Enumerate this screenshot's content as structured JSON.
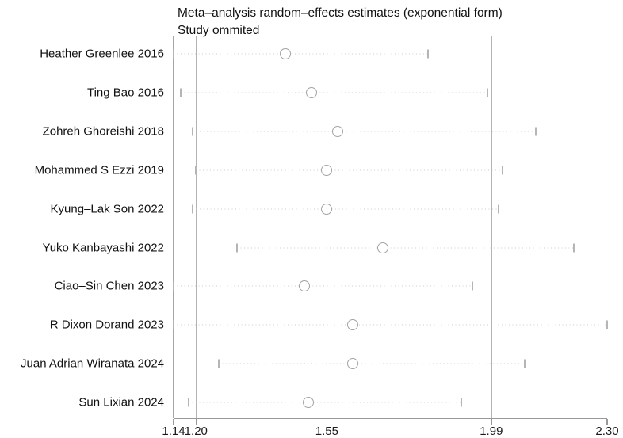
{
  "title_line1": "Meta–analysis random–effects estimates (exponential form)",
  "title_line2": "Study ommited",
  "colors": {
    "background": "#ffffff",
    "text": "#111111",
    "axis_line": "#999999",
    "reference_line": "#b3b3b3",
    "ci_dots": "#cccccc",
    "ci_tick": "#b5b5b5",
    "circle_stroke": "#a3a3a3",
    "circle_fill": "#ffffff"
  },
  "chart_data": {
    "type": "scatter",
    "subtype": "forest-leave-one-out",
    "title": "Meta–analysis random–effects estimates (exponential form)",
    "subtitle": "Study ommited",
    "xlabel": "",
    "ylabel": "",
    "x_axis": {
      "scale": "linear",
      "min": 1.14,
      "max": 2.3,
      "ticks": [
        1.14,
        1.2,
        1.55,
        1.99,
        2.3
      ],
      "tick_labels": [
        "1.14",
        "1.20",
        "1.55",
        "1.99",
        "2.30"
      ]
    },
    "reference_lines": {
      "overall_ci_lower": 1.2,
      "overall_estimate": 1.55,
      "overall_ci_upper": 1.99
    },
    "grid": false,
    "legend": "none",
    "studies": [
      {
        "label": "Heather Greenlee 2016",
        "estimate": 1.44,
        "ci_lower": 1.14,
        "ci_upper": 1.82
      },
      {
        "label": "Ting Bao 2016",
        "estimate": 1.51,
        "ci_lower": 1.16,
        "ci_upper": 1.98
      },
      {
        "label": "Zohreh Ghoreishi 2018",
        "estimate": 1.58,
        "ci_lower": 1.19,
        "ci_upper": 2.11
      },
      {
        "label": "Mohammed S Ezzi 2019",
        "estimate": 1.55,
        "ci_lower": 1.2,
        "ci_upper": 2.02
      },
      {
        "label": "Kyung–Lak Son 2022",
        "estimate": 1.55,
        "ci_lower": 1.19,
        "ci_upper": 2.01
      },
      {
        "label": "Yuko Kanbayashi 2022",
        "estimate": 1.7,
        "ci_lower": 1.31,
        "ci_upper": 2.21
      },
      {
        "label": "Ciao–Sin Chen 2023",
        "estimate": 1.49,
        "ci_lower": 1.14,
        "ci_upper": 1.94
      },
      {
        "label": "R Dixon Dorand 2023",
        "estimate": 1.62,
        "ci_lower": 1.14,
        "ci_upper": 2.3
      },
      {
        "label": "Juan Adrian Wiranata 2024",
        "estimate": 1.62,
        "ci_lower": 1.26,
        "ci_upper": 2.08
      },
      {
        "label": "Sun Lixian 2024",
        "estimate": 1.5,
        "ci_lower": 1.18,
        "ci_upper": 1.91
      }
    ]
  }
}
